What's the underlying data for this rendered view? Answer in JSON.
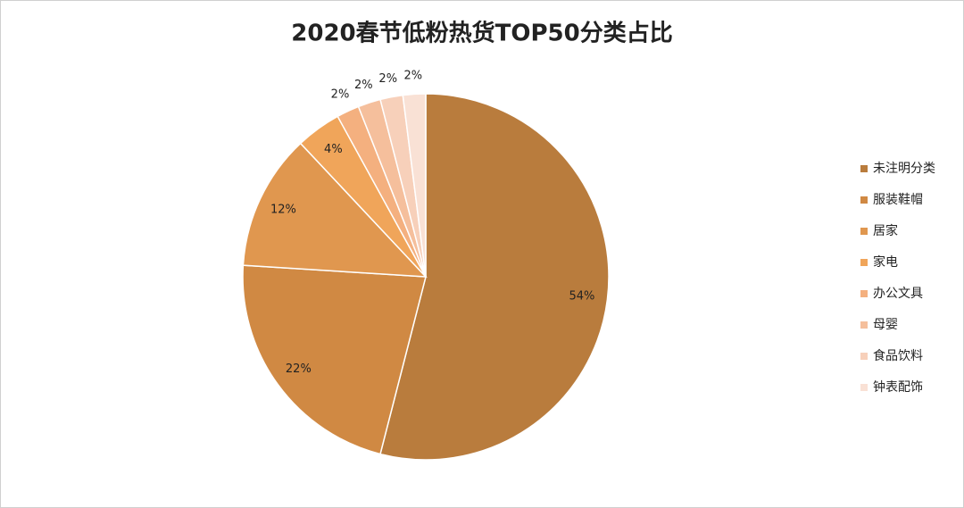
{
  "chart_data": {
    "type": "pie",
    "title": "2020春节低粉热货TOP50分类占比",
    "categories": [
      "未注明分类",
      "服装鞋帽",
      "居家",
      "家电",
      "办公文具",
      "母婴",
      "食品饮料",
      "钟表配饰"
    ],
    "values": [
      54,
      22,
      12,
      4,
      2,
      2,
      2,
      2
    ],
    "value_labels": [
      "54%",
      "22%",
      "12%",
      "4%",
      "2%",
      "2%",
      "2%",
      "2%"
    ],
    "colors": [
      "#b97c3d",
      "#d08943",
      "#e0974f",
      "#f0a55a",
      "#f4b07f",
      "#f5bf9c",
      "#f7d0ba",
      "#f9e1d5"
    ],
    "legend": "right"
  }
}
